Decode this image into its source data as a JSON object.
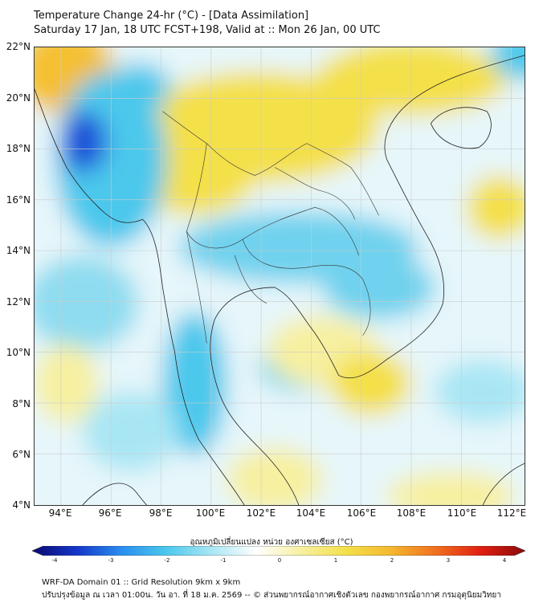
{
  "header": {
    "title": "Temperature Change 24-hr (°C) - [Data Assimilation]",
    "subtitle": "Saturday 17 Jan, 18 UTC FCST+198, Valid at :: Mon 26 Jan, 00 UTC"
  },
  "map": {
    "lat_labels": [
      "22°N",
      "20°N",
      "18°N",
      "16°N",
      "14°N",
      "12°N",
      "10°N",
      "8°N",
      "6°N",
      "4°N"
    ],
    "lon_labels": [
      "94°E",
      "96°E",
      "98°E",
      "100°E",
      "102°E",
      "104°E",
      "106°E",
      "108°E",
      "110°E",
      "112°E"
    ],
    "colors": {
      "cold_strong": "#1f4fd8",
      "cold": "#4cc8ec",
      "neutral": "#e9f7fb",
      "warm": "#f4e04a",
      "warm_strong": "#f5c030",
      "border": "#222222"
    }
  },
  "colorbar": {
    "title": "อุณหภูมิเปลี่ยนแปลง หน่วย องศาเซลเซียส (°C)",
    "ticks": [
      "-4",
      "-3",
      "-2",
      "-1",
      "0",
      "1",
      "2",
      "3",
      "4"
    ],
    "colors": [
      "#0a0a70",
      "#1536c8",
      "#2a8ff0",
      "#4cc8ec",
      "#a9e6f4",
      "#ffffff",
      "#f7f0a0",
      "#f4e04a",
      "#f5b830",
      "#f07020",
      "#e02010",
      "#8a0a0a"
    ]
  },
  "footer": {
    "line1": "WRF-DA Domain 01 :: Grid Resolution 9km x 9km",
    "line2": "ปรับปรุงข้อมูล ณ เวลา 01:00น. วัน อา. ที่ 18 ม.ค. 2569 -- © ส่วนพยากรณ์อากาศเชิงตัวเลข กองพยากรณ์อากาศ กรมอุตุนิยมวิทยา"
  }
}
